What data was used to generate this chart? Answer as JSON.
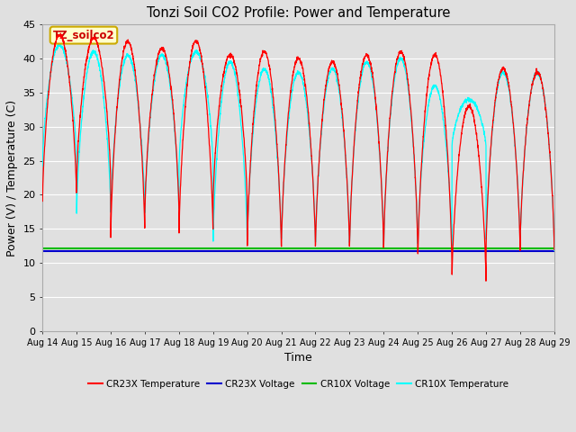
{
  "title": "Tonzi Soil CO2 Profile: Power and Temperature",
  "xlabel": "Time",
  "ylabel": "Power (V) / Temperature (C)",
  "ylim": [
    0,
    45
  ],
  "yticks": [
    0,
    5,
    10,
    15,
    20,
    25,
    30,
    35,
    40,
    45
  ],
  "xtick_labels": [
    "Aug 14",
    "Aug 15",
    "Aug 16",
    "Aug 17",
    "Aug 18",
    "Aug 19",
    "Aug 20",
    "Aug 21",
    "Aug 22",
    "Aug 23",
    "Aug 24",
    "Aug 25",
    "Aug 26",
    "Aug 27",
    "Aug 28",
    "Aug 29"
  ],
  "cr23x_voltage_level": 11.7,
  "cr10x_voltage_level": 12.2,
  "cr23x_color": "#ff0000",
  "cr10x_color": "#00ffff",
  "cr23x_voltage_color": "#0000cc",
  "cr10x_voltage_color": "#00bb00",
  "annotation_text": "TZ_soilco2",
  "background_color": "#e0e0e0",
  "grid_color": "#ffffff",
  "legend_labels": [
    "CR23X Temperature",
    "CR23X Voltage",
    "CR10X Voltage",
    "CR10X Temperature"
  ],
  "legend_colors": [
    "#ff0000",
    "#0000cc",
    "#00bb00",
    "#00ffff"
  ],
  "peaks_cr23x": [
    43.5,
    43.0,
    42.5,
    41.5,
    42.5,
    40.5,
    41.0,
    40.0,
    39.5,
    40.5,
    41.0,
    40.5,
    33.0,
    38.5,
    38.0
  ],
  "troughs_cr23x": [
    19.0,
    21.5,
    13.5,
    17.0,
    13.5,
    18.5,
    11.5,
    11.5,
    11.5,
    11.5,
    11.5,
    9.5,
    7.0,
    11.5,
    12.0
  ],
  "peaks_cr10x": [
    42.0,
    41.0,
    40.5,
    40.5,
    41.0,
    39.5,
    38.5,
    38.0,
    38.5,
    39.5,
    40.0,
    36.0,
    34.0,
    38.0,
    38.0
  ],
  "troughs_cr10x": [
    24.5,
    17.0,
    17.0,
    17.0,
    24.0,
    12.5,
    12.5,
    12.5,
    12.0,
    12.0,
    12.0,
    12.0,
    27.0,
    12.0,
    12.0
  ]
}
